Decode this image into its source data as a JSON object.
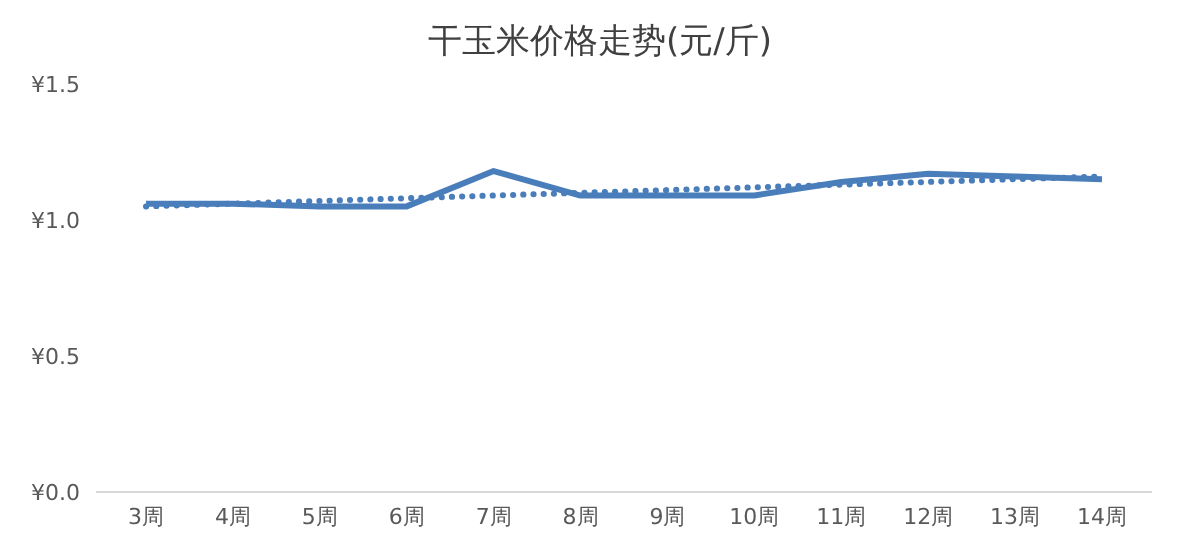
{
  "chart_data": {
    "type": "line",
    "title": "干玉米价格走势(元/斤)",
    "categories": [
      "3周",
      "4周",
      "5周",
      "6周",
      "7周",
      "8周",
      "9周",
      "10周",
      "11周",
      "12周",
      "13周",
      "14周"
    ],
    "series": [
      {
        "color": "#4a7ebb",
        "values": [
          1.06,
          1.06,
          1.05,
          1.05,
          1.18,
          1.09,
          1.09,
          1.09,
          1.14,
          1.17,
          1.16,
          1.15
        ],
        "line_style": "solid"
      },
      {
        "type": "line",
        "color": "#4a7ebb",
        "x": [
          "3周",
          "4周",
          "5周",
          "6周",
          "7周",
          "8周",
          "9周",
          "10周",
          "11周",
          "12周",
          "13周",
          "14周"
        ],
        "values": [
          1.05,
          1.06,
          1.07,
          1.08,
          1.09,
          1.1,
          1.11,
          1.12,
          1.13,
          1.14,
          1.15,
          1.16
        ],
        "line_style": "dotted"
      }
    ],
    "ylim": [
      0,
      1.5
    ],
    "yticks": [
      {
        "value": 0,
        "label": "¥0.0"
      },
      {
        "value": 0.5,
        "label": "¥0.5"
      },
      {
        "value": 1,
        "label": "¥1.0"
      },
      {
        "value": 1.5,
        "label": "¥1.5"
      }
    ],
    "grid": false,
    "marker": "none"
  }
}
